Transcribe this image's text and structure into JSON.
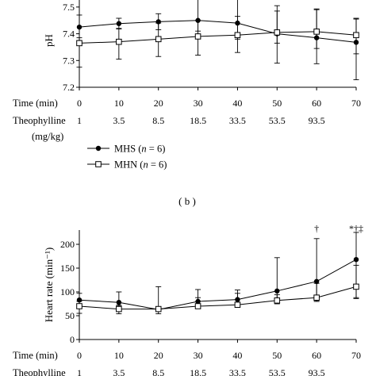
{
  "chart_data": [
    {
      "type": "line",
      "panel": "a",
      "ylabel": "pH",
      "ylim": [
        7.2,
        7.55
      ],
      "yticks": [
        7.2,
        7.3,
        7.4,
        7.5
      ],
      "x": [
        0,
        10,
        20,
        30,
        40,
        50,
        60,
        70
      ],
      "time_row_label": "Time (min)",
      "time_values": [
        "0",
        "10",
        "20",
        "30",
        "40",
        "50",
        "60",
        "70"
      ],
      "theo_row_label": "Theophylline",
      "theo_unit_label": "(mg/kg)",
      "theo_values": [
        "1",
        "3.5",
        "8.5",
        "18.5",
        "33.5",
        "53.5",
        "93.5"
      ],
      "series": [
        {
          "name": "MHS",
          "n_label": "n",
          "n_value": "= 6)",
          "marker": "filled-circle",
          "values": [
            7.425,
            7.438,
            7.445,
            7.45,
            7.44,
            7.4,
            7.385,
            7.368
          ],
          "err_up": [
            0.045,
            0.02,
            0.03,
            0.1,
            0.14,
            0.105,
            0.105,
            0.09
          ],
          "err_down": [
            0.05,
            0.02,
            0.03,
            0.04,
            0.06,
            0.035,
            0.04,
            0.14
          ]
        },
        {
          "name": "MHN",
          "n_label": "n",
          "n_value": "= 6)",
          "marker": "open-square",
          "values": [
            7.365,
            7.37,
            7.38,
            7.39,
            7.395,
            7.405,
            7.408,
            7.395
          ],
          "err_up": [
            0.02,
            0.05,
            0.06,
            0.06,
            0.07,
            0.08,
            0.085,
            0.06
          ],
          "err_down": [
            0.09,
            0.065,
            0.065,
            0.07,
            0.065,
            0.115,
            0.12,
            0.07
          ]
        }
      ]
    },
    {
      "type": "line",
      "panel": "b",
      "panel_label": "( b )",
      "ylabel": "Heart rate (min⁻¹)",
      "ylim": [
        0,
        230
      ],
      "yticks": [
        0,
        50,
        100,
        150,
        200
      ],
      "x": [
        0,
        10,
        20,
        30,
        40,
        50,
        60,
        70
      ],
      "time_row_label": "Time (min)",
      "time_values": [
        "0",
        "10",
        "20",
        "30",
        "40",
        "50",
        "60",
        "70"
      ],
      "theo_row_label": "Theophylline",
      "theo_values": [
        "1",
        "3.5",
        "8.5",
        "18.5",
        "33.5",
        "53.5",
        "93.5"
      ],
      "annotations": [
        {
          "x": 60,
          "text": "†"
        },
        {
          "x": 70,
          "text": "*†‡"
        }
      ],
      "series": [
        {
          "name": "MHS",
          "marker": "filled-circle",
          "values": [
            83,
            78,
            63,
            80,
            84,
            102,
            122,
            168
          ],
          "err_up": [
            14,
            22,
            2,
            25,
            20,
            70,
            90,
            57
          ],
          "err_down": [
            13,
            8,
            3,
            12,
            10,
            22,
            40,
            80
          ]
        },
        {
          "name": "MHN",
          "marker": "open-square",
          "values": [
            70,
            64,
            64,
            70,
            73,
            82,
            88,
            111
          ],
          "err_up": [
            10,
            8,
            47,
            18,
            24,
            12,
            30,
            45
          ],
          "err_down": [
            15,
            10,
            10,
            5,
            5,
            7,
            8,
            25
          ]
        }
      ]
    }
  ]
}
